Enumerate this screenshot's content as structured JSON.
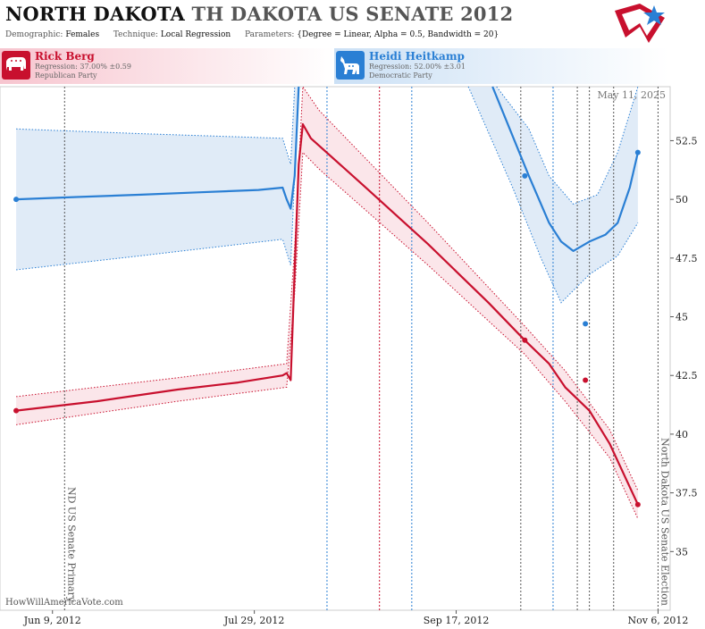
{
  "header": {
    "title_main": "NORTH DAKOTA",
    "title_sub": "TH DAKOTA US SENATE 2012",
    "demographic_label": "Demographic:",
    "demographic_value": "Females",
    "technique_label": "Technique:",
    "technique_value": "Local Regression",
    "parameters_label": "Parameters:",
    "parameters_value": "{Degree = Linear, Alpha = 0.5, Bandwidth = 20}"
  },
  "candidates": [
    {
      "name": "Rick Berg",
      "regression": "Regression: 37.00% ±0.59",
      "party": "Republican Party",
      "color": "#c8102e"
    },
    {
      "name": "Heidi Heitkamp",
      "regression": "Regression: 52.00% ±3.01",
      "party": "Democratic Party",
      "color": "#2a7fd4"
    }
  ],
  "date_label": "May 11, 2025",
  "watermark": "HowWillAmericaVote.com",
  "chart_data": {
    "type": "line",
    "x_axis": {
      "type": "date",
      "min": "2012-05-27",
      "max": "2012-11-09",
      "ticks": [
        "2012-06-09",
        "2012-07-29",
        "2012-09-17",
        "2012-11-06"
      ],
      "tick_labels": [
        "Jun 9, 2012",
        "Jul 29, 2012",
        "Sep 17, 2012",
        "Nov 6, 2012"
      ]
    },
    "y_axis": {
      "min": 32.5,
      "max": 54.8,
      "ticks": [
        35,
        37.5,
        40,
        42.5,
        45,
        47.5,
        50,
        52.5
      ],
      "tick_labels": [
        "35",
        "37.5",
        "40",
        "42.5",
        "45",
        "47.5",
        "50",
        "52.5"
      ],
      "position": "right"
    },
    "events": [
      {
        "date": "2012-06-12",
        "label": "ND US Senate Primary"
      },
      {
        "date": "2012-11-06",
        "label": "North Dakota US Senate Election"
      }
    ],
    "poll_dates": [
      {
        "date": "2012-08-16",
        "color": "#2a7fd4"
      },
      {
        "date": "2012-08-29",
        "color": "#c8102e"
      },
      {
        "date": "2012-09-06",
        "color": "#2a7fd4"
      },
      {
        "date": "2012-10-03",
        "color": "#555555"
      },
      {
        "date": "2012-10-11",
        "color": "#2a7fd4"
      },
      {
        "date": "2012-10-17",
        "color": "#555555"
      },
      {
        "date": "2012-10-20",
        "color": "#555555"
      },
      {
        "date": "2012-10-26",
        "color": "#555555"
      }
    ],
    "series": [
      {
        "name": "Heidi Heitkamp",
        "color": "#2a7fd4",
        "band_color": "#dde9f6",
        "line": [
          {
            "x": "2012-05-31",
            "y": 50.0
          },
          {
            "x": "2012-06-15",
            "y": 50.1
          },
          {
            "x": "2012-07-01",
            "y": 50.2
          },
          {
            "x": "2012-07-15",
            "y": 50.3
          },
          {
            "x": "2012-07-30",
            "y": 50.4
          },
          {
            "x": "2012-08-05",
            "y": 50.5
          },
          {
            "x": "2012-08-06",
            "y": 50.0
          },
          {
            "x": "2012-08-07",
            "y": 49.6
          },
          {
            "x": "2012-08-08",
            "y": 51.0
          },
          {
            "x": "2012-08-09",
            "y": 54.8
          }
        ],
        "line2": [
          {
            "x": "2012-09-26",
            "y": 54.8
          },
          {
            "x": "2012-10-05",
            "y": 51.0
          },
          {
            "x": "2012-10-10",
            "y": 49.0
          },
          {
            "x": "2012-10-13",
            "y": 48.2
          },
          {
            "x": "2012-10-16",
            "y": 47.8
          },
          {
            "x": "2012-10-20",
            "y": 48.2
          },
          {
            "x": "2012-10-24",
            "y": 48.5
          },
          {
            "x": "2012-10-27",
            "y": 49.0
          },
          {
            "x": "2012-10-30",
            "y": 50.5
          },
          {
            "x": "2012-11-01",
            "y": 52.0
          }
        ],
        "upper": [
          {
            "x": "2012-05-31",
            "y": 53.0
          },
          {
            "x": "2012-07-01",
            "y": 52.8
          },
          {
            "x": "2012-08-05",
            "y": 52.6
          },
          {
            "x": "2012-08-07",
            "y": 51.5
          },
          {
            "x": "2012-08-08",
            "y": 54.8
          }
        ],
        "lower": [
          {
            "x": "2012-05-31",
            "y": 47.0
          },
          {
            "x": "2012-07-01",
            "y": 47.6
          },
          {
            "x": "2012-08-05",
            "y": 48.3
          },
          {
            "x": "2012-08-07",
            "y": 47.2
          },
          {
            "x": "2012-08-09",
            "y": 54.8
          }
        ],
        "upper2": [
          {
            "x": "2012-09-27",
            "y": 54.8
          },
          {
            "x": "2012-10-05",
            "y": 53.0
          },
          {
            "x": "2012-10-10",
            "y": 51.0
          },
          {
            "x": "2012-10-16",
            "y": 49.8
          },
          {
            "x": "2012-10-22",
            "y": 50.2
          },
          {
            "x": "2012-10-27",
            "y": 52.0
          },
          {
            "x": "2012-11-01",
            "y": 54.8
          }
        ],
        "lower2": [
          {
            "x": "2012-09-20",
            "y": 54.8
          },
          {
            "x": "2012-10-01",
            "y": 50.5
          },
          {
            "x": "2012-10-08",
            "y": 47.5
          },
          {
            "x": "2012-10-13",
            "y": 45.6
          },
          {
            "x": "2012-10-20",
            "y": 46.8
          },
          {
            "x": "2012-10-27",
            "y": 47.6
          },
          {
            "x": "2012-11-01",
            "y": 49.0
          }
        ],
        "points": [
          {
            "x": "2012-05-31",
            "y": 50.0
          },
          {
            "x": "2012-10-04",
            "y": 51.0
          },
          {
            "x": "2012-10-19",
            "y": 44.7
          },
          {
            "x": "2012-11-01",
            "y": 52.0
          }
        ]
      },
      {
        "name": "Rick Berg",
        "color": "#c8102e",
        "band_color": "#fbe3e8",
        "line": [
          {
            "x": "2012-05-31",
            "y": 41.0
          },
          {
            "x": "2012-06-20",
            "y": 41.4
          },
          {
            "x": "2012-07-10",
            "y": 41.9
          },
          {
            "x": "2012-07-25",
            "y": 42.2
          },
          {
            "x": "2012-08-05",
            "y": 42.5
          },
          {
            "x": "2012-08-06",
            "y": 42.6
          },
          {
            "x": "2012-08-07",
            "y": 42.3
          },
          {
            "x": "2012-08-08",
            "y": 47.0
          },
          {
            "x": "2012-08-09",
            "y": 51.5
          },
          {
            "x": "2012-08-10",
            "y": 53.2
          },
          {
            "x": "2012-08-12",
            "y": 52.6
          },
          {
            "x": "2012-08-25",
            "y": 50.6
          },
          {
            "x": "2012-09-10",
            "y": 48.1
          },
          {
            "x": "2012-09-25",
            "y": 45.6
          },
          {
            "x": "2012-10-04",
            "y": 44.0
          },
          {
            "x": "2012-10-10",
            "y": 43.0
          },
          {
            "x": "2012-10-14",
            "y": 42.0
          },
          {
            "x": "2012-10-20",
            "y": 41.0
          },
          {
            "x": "2012-10-25",
            "y": 39.6
          },
          {
            "x": "2012-11-01",
            "y": 37.0
          }
        ],
        "upper": [
          {
            "x": "2012-05-31",
            "y": 41.6
          },
          {
            "x": "2012-07-10",
            "y": 42.4
          },
          {
            "x": "2012-08-06",
            "y": 43.0
          },
          {
            "x": "2012-08-08",
            "y": 48.0
          },
          {
            "x": "2012-08-10",
            "y": 54.8
          },
          {
            "x": "2012-08-14",
            "y": 53.8
          },
          {
            "x": "2012-09-10",
            "y": 49.0
          },
          {
            "x": "2012-10-04",
            "y": 44.6
          },
          {
            "x": "2012-10-14",
            "y": 42.7
          },
          {
            "x": "2012-10-25",
            "y": 40.2
          },
          {
            "x": "2012-11-01",
            "y": 37.6
          }
        ],
        "lower": [
          {
            "x": "2012-05-31",
            "y": 40.4
          },
          {
            "x": "2012-07-10",
            "y": 41.4
          },
          {
            "x": "2012-08-06",
            "y": 42.0
          },
          {
            "x": "2012-08-08",
            "y": 46.0
          },
          {
            "x": "2012-08-10",
            "y": 52.0
          },
          {
            "x": "2012-08-14",
            "y": 51.3
          },
          {
            "x": "2012-09-10",
            "y": 47.2
          },
          {
            "x": "2012-10-04",
            "y": 43.4
          },
          {
            "x": "2012-10-14",
            "y": 41.4
          },
          {
            "x": "2012-10-25",
            "y": 39.0
          },
          {
            "x": "2012-11-01",
            "y": 36.4
          }
        ],
        "points": [
          {
            "x": "2012-05-31",
            "y": 41.0
          },
          {
            "x": "2012-10-04",
            "y": 44.0
          },
          {
            "x": "2012-10-19",
            "y": 42.3
          },
          {
            "x": "2012-11-01",
            "y": 37.0
          }
        ]
      }
    ],
    "grid": false
  }
}
